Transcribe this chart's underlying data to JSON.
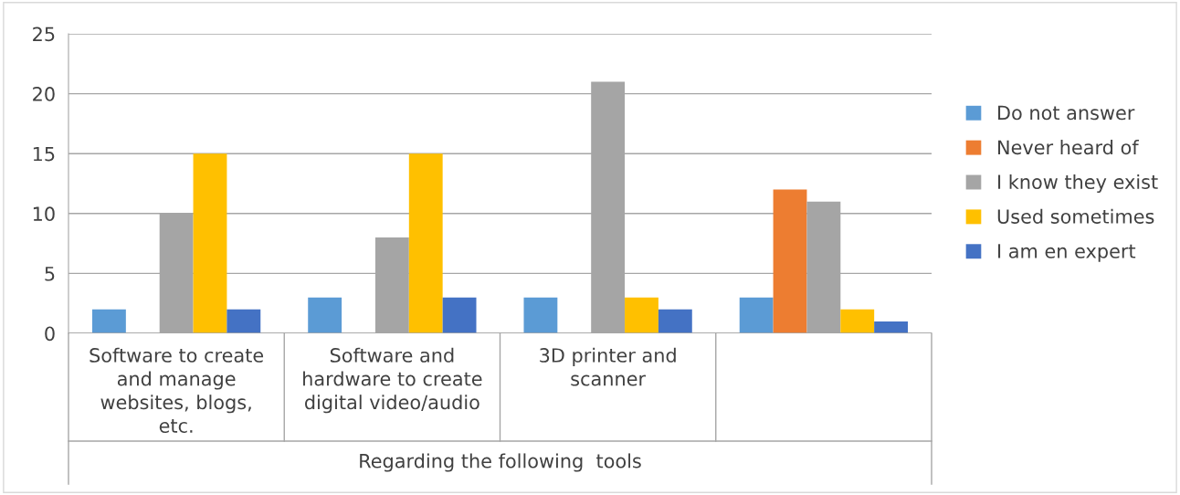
{
  "chart_data": {
    "type": "bar",
    "xlabel": "Regarding the following  tools",
    "categories": [
      "Software to create and manage websites, blogs, etc.",
      "Software and hardware to create digital video/audio",
      "3D printer and scanner",
      null
    ],
    "series": [
      {
        "name": "Do not answer",
        "color": "#5b9bd5",
        "values": [
          2,
          3,
          3,
          3
        ]
      },
      {
        "name": "Never heard of",
        "color": "#ed7d31",
        "values": [
          0,
          0,
          0,
          12
        ]
      },
      {
        "name": "I know they exist",
        "color": "#a5a5a5",
        "values": [
          10,
          8,
          21,
          11
        ]
      },
      {
        "name": "Used sometimes",
        "color": "#ffc000",
        "values": [
          15,
          15,
          3,
          2
        ]
      },
      {
        "name": "I am en expert",
        "color": "#4472c4",
        "values": [
          2,
          3,
          2,
          1
        ]
      }
    ],
    "ylim": [
      0,
      25
    ],
    "yticks": [
      0,
      5,
      10,
      15,
      20,
      25
    ],
    "grid": "y",
    "legend": "right"
  }
}
